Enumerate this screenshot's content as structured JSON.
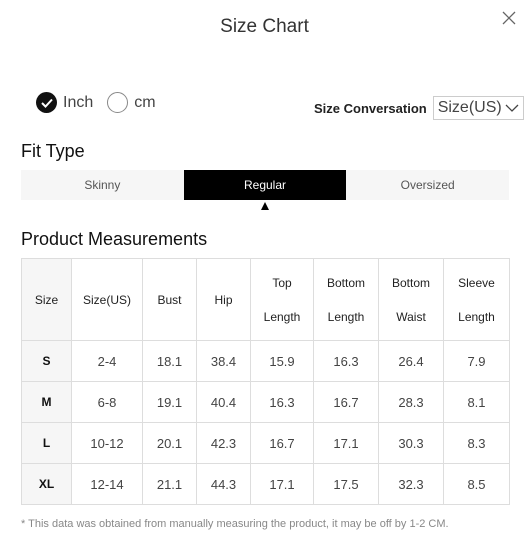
{
  "header": {
    "title": "Size Chart"
  },
  "units": [
    {
      "label": "Inch",
      "selected": true
    },
    {
      "label": "cm",
      "selected": false
    }
  ],
  "conversation": {
    "label": "Size Conversation",
    "value": "Size(US)"
  },
  "fit": {
    "title": "Fit Type",
    "tabs": [
      {
        "label": "Skinny",
        "active": false
      },
      {
        "label": "Regular",
        "active": true
      },
      {
        "label": "Oversized",
        "active": false
      }
    ]
  },
  "measurements": {
    "title": "Product Measurements",
    "columns": [
      [
        "Size"
      ],
      [
        "Size(US)"
      ],
      [
        "Bust"
      ],
      [
        "Hip"
      ],
      [
        "Top",
        "Length"
      ],
      [
        "Bottom",
        "Length"
      ],
      [
        "Bottom",
        "Waist"
      ],
      [
        "Sleeve",
        "Length"
      ]
    ],
    "rows": [
      [
        "S",
        "2-4",
        "18.1",
        "38.4",
        "15.9",
        "16.3",
        "26.4",
        "7.9"
      ],
      [
        "M",
        "6-8",
        "19.1",
        "40.4",
        "16.3",
        "16.7",
        "28.3",
        "8.1"
      ],
      [
        "L",
        "10-12",
        "20.1",
        "42.3",
        "16.7",
        "17.1",
        "30.3",
        "8.3"
      ],
      [
        "XL",
        "12-14",
        "21.1",
        "44.3",
        "17.1",
        "17.5",
        "32.3",
        "8.5"
      ]
    ]
  },
  "note": "* This data was obtained from manually measuring the product, it may be off by 1-2 CM."
}
